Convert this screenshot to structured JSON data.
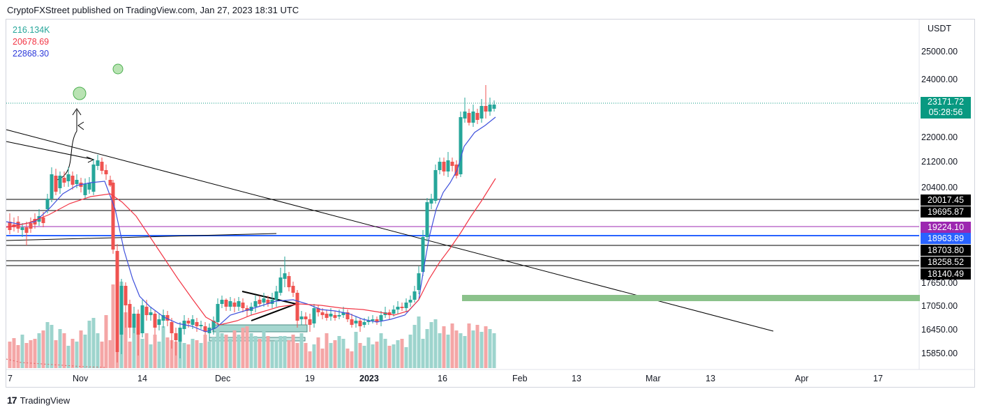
{
  "header": {
    "publisher_text": "CryptoFXStreet published on TradingView.com, Jan 27, 2023 18:31 UTC"
  },
  "legend": {
    "volume": "216.134K",
    "ma_slow": "20678.69",
    "ma_fast": "22868.30",
    "colors": {
      "volume": "#26a69a",
      "ma_slow": "#f23645",
      "ma_fast": "#2d3adb"
    }
  },
  "price_axis": {
    "currency": "USDT",
    "labels": [
      "25000.00",
      "24000.00",
      "22000.00",
      "21200.00",
      "20400.00",
      "17650.00",
      "17050.00",
      "16450.00",
      "15850.00"
    ]
  },
  "current_price": {
    "price": "23171.72",
    "countdown": "05:28:56",
    "color": "#089981"
  },
  "level_tags": [
    {
      "value": "20017.45",
      "color": "#000000"
    },
    {
      "value": "19695.87",
      "color": "#000000"
    },
    {
      "value": "19224.10",
      "color": "#9c27b0"
    },
    {
      "value": "18963.89",
      "color": "#2962ff"
    },
    {
      "value": "18703.80",
      "color": "#000000"
    },
    {
      "value": "18258.52",
      "color": "#000000"
    },
    {
      "value": "18140.49",
      "color": "#000000"
    }
  ],
  "time_axis": {
    "labels": [
      "7",
      "Nov",
      "14",
      "Dec",
      "19",
      "2023",
      "16",
      "Feb",
      "13",
      "Mar",
      "13",
      "Apr",
      "17"
    ]
  },
  "footer": {
    "brand": "TradingView",
    "logo_text": "17"
  }
}
